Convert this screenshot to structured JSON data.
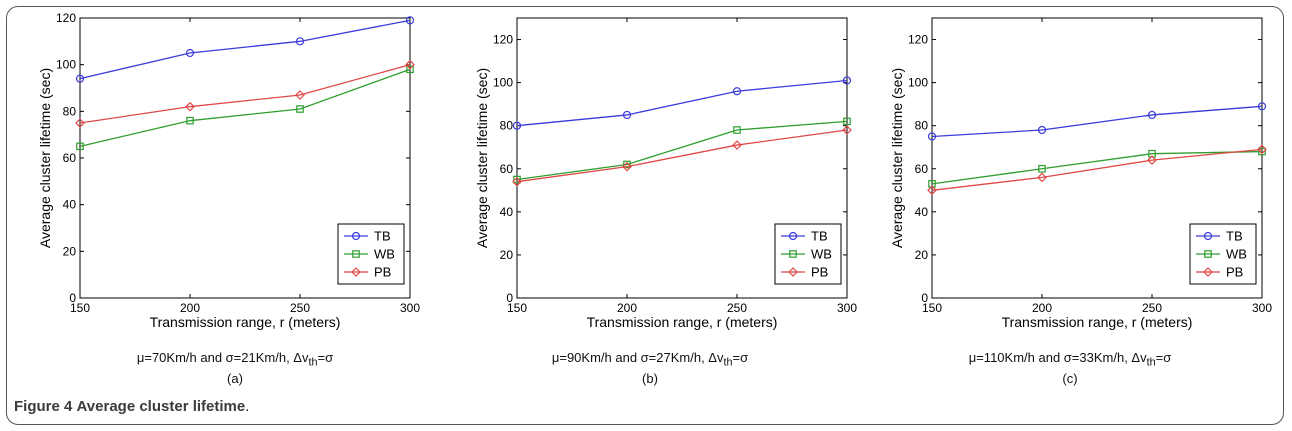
{
  "figure_caption": {
    "label": "Figure 4",
    "text": "Average cluster lifetime",
    "period": "."
  },
  "chart_data": [
    {
      "type": "line",
      "panel_label": "(a)",
      "condition": {
        "prefix": "μ=70Km/h and σ=21Km/h, Δv",
        "sub": "th",
        "suffix": "=σ"
      },
      "xlabel": "Transmission range, r (meters)",
      "ylabel": "Average cluster lifetime (sec)",
      "x": [
        150,
        200,
        250,
        300
      ],
      "xlim": [
        150,
        300
      ],
      "ylim": [
        0,
        120
      ],
      "xticks": [
        150,
        200,
        250,
        300
      ],
      "yticks": [
        0,
        20,
        40,
        60,
        80,
        100,
        120
      ],
      "legend_position": "bottom-right",
      "series": [
        {
          "name": "TB",
          "color": "#3b3bdc",
          "marker": "circle",
          "values": [
            94,
            105,
            110,
            119
          ]
        },
        {
          "name": "WB",
          "color": "#2e9e2e",
          "marker": "square",
          "values": [
            65,
            76,
            81,
            98
          ]
        },
        {
          "name": "PB",
          "color": "#e04848",
          "marker": "diamond",
          "values": [
            75,
            82,
            87,
            100
          ]
        }
      ]
    },
    {
      "type": "line",
      "panel_label": "(b)",
      "condition": {
        "prefix": "μ=90Km/h and σ=27Km/h, Δv",
        "sub": "th",
        "suffix": "=σ"
      },
      "xlabel": "Transmission range, r (meters)",
      "ylabel": "Average cluster lifetime (sec)",
      "x": [
        150,
        200,
        250,
        300
      ],
      "xlim": [
        150,
        300
      ],
      "ylim": [
        0,
        130
      ],
      "xticks": [
        150,
        200,
        250,
        300
      ],
      "yticks": [
        0,
        20,
        40,
        60,
        80,
        100,
        120
      ],
      "legend_position": "bottom-right",
      "series": [
        {
          "name": "TB",
          "color": "#3b3bdc",
          "marker": "circle",
          "values": [
            80,
            85,
            96,
            101
          ]
        },
        {
          "name": "WB",
          "color": "#2e9e2e",
          "marker": "square",
          "values": [
            55,
            62,
            78,
            82
          ]
        },
        {
          "name": "PB",
          "color": "#e04848",
          "marker": "diamond",
          "values": [
            54,
            61,
            71,
            78
          ]
        }
      ]
    },
    {
      "type": "line",
      "panel_label": "(c)",
      "condition": {
        "prefix": "μ=110Km/h and σ=33Km/h, Δv",
        "sub": "th",
        "suffix": "=σ"
      },
      "xlabel": "Transmission range, r (meters)",
      "ylabel": "Average cluster lifetime (sec)",
      "x": [
        150,
        200,
        250,
        300
      ],
      "xlim": [
        150,
        300
      ],
      "ylim": [
        0,
        130
      ],
      "xticks": [
        150,
        200,
        250,
        300
      ],
      "yticks": [
        0,
        20,
        40,
        60,
        80,
        100,
        120
      ],
      "legend_position": "bottom-right",
      "series": [
        {
          "name": "TB",
          "color": "#3b3bdc",
          "marker": "circle",
          "values": [
            75,
            78,
            85,
            89
          ]
        },
        {
          "name": "WB",
          "color": "#2e9e2e",
          "marker": "square",
          "values": [
            53,
            60,
            67,
            68
          ]
        },
        {
          "name": "PB",
          "color": "#e04848",
          "marker": "diamond",
          "values": [
            50,
            56,
            64,
            69
          ]
        }
      ]
    }
  ]
}
